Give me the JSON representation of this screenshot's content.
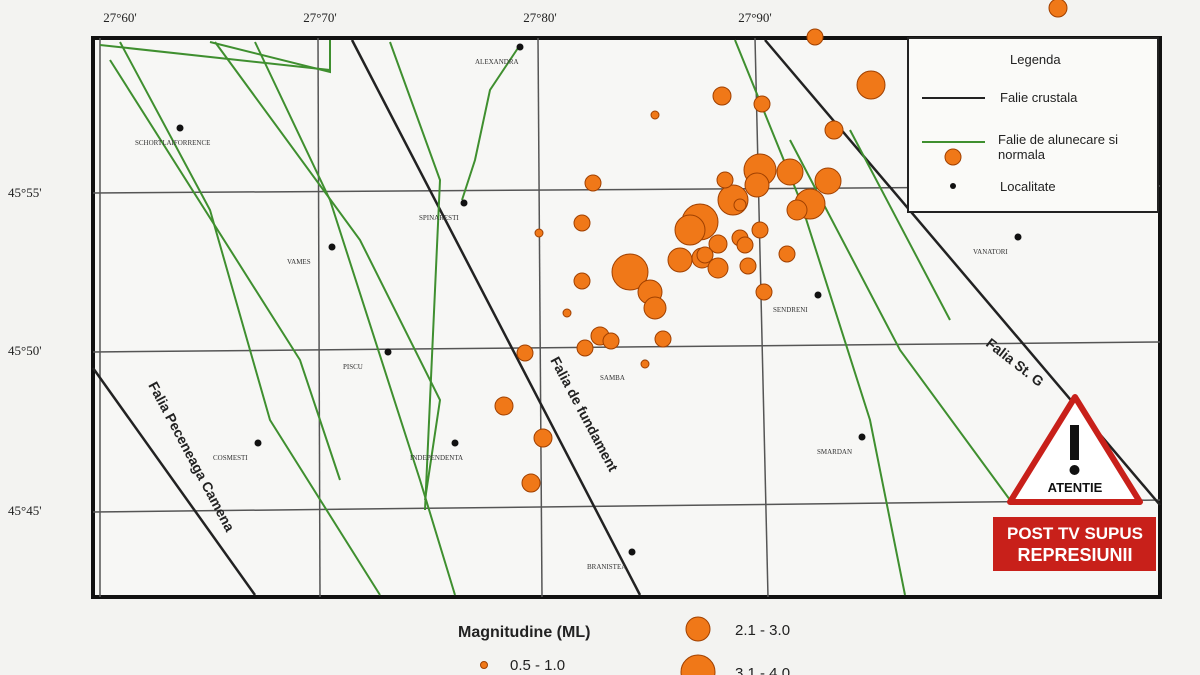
{
  "map": {
    "lon_labels": [
      "27°60'",
      "27°70'",
      "27°80'",
      "27°90'"
    ],
    "lat_labels": [
      "45°55'",
      "45°50'",
      "45°45'"
    ],
    "faults": [
      "Falia Peceneaga Camena",
      "Falia de fundament",
      "Falia St. G"
    ],
    "towns": [
      "ALEXANDRA",
      "SCHORTLAIFORRENCE",
      "SPINARESTI",
      "VAMES",
      "PISCU",
      "COSMESTI",
      "INDEPENDENTA",
      "SAMBA",
      "SENDRENI",
      "SMARDAN",
      "VANATORI",
      "BRANISTEA"
    ]
  },
  "legend": {
    "title": "Legenda",
    "items": [
      "Falie crustala",
      "Falie de alunecare si normala",
      "Localitate"
    ]
  },
  "magnitude_legend": {
    "title": "Magnitudine (ML)",
    "classes": [
      "0.5 - 1.0",
      "2.1 - 3.0",
      "3.1 - 4.0"
    ]
  },
  "badge": {
    "warning": "ATENTIE",
    "line1": "POST TV SUPUS",
    "line2": "REPRESIUNII"
  }
}
